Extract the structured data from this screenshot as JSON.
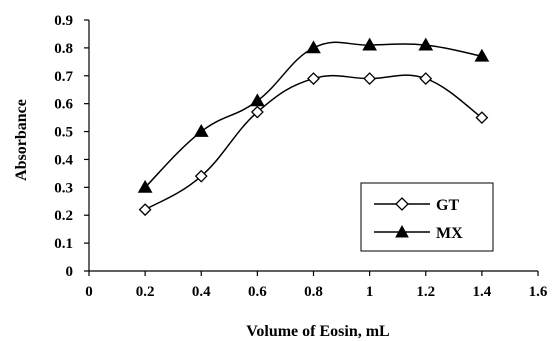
{
  "chart_data": {
    "type": "line",
    "title": "",
    "xlabel": "Volume of Eosin, mL",
    "ylabel": "Absorbance",
    "xlim": [
      0,
      1.6
    ],
    "ylim": [
      0,
      0.9
    ],
    "x_ticks": [
      0,
      0.2,
      0.4,
      0.6,
      0.8,
      1,
      1.2,
      1.4,
      1.6
    ],
    "y_ticks": [
      0,
      0.1,
      0.2,
      0.3,
      0.4,
      0.5,
      0.6,
      0.7,
      0.8,
      0.9
    ],
    "x_tick_labels": [
      "0",
      "0.2",
      "0.4",
      "0.6",
      "0.8",
      "1",
      "1.2",
      "1.4",
      "1.6"
    ],
    "y_tick_labels": [
      "0",
      "0.1",
      "0.2",
      "0.3",
      "0.4",
      "0.5",
      "0.6",
      "0.7",
      "0.8",
      "0.9"
    ],
    "grid": false,
    "smooth": true,
    "legend_position": "bottom-right",
    "series": [
      {
        "name": "GT",
        "marker": "diamond-open",
        "color": "#000000",
        "x": [
          0.2,
          0.4,
          0.6,
          0.8,
          1.0,
          1.2,
          1.4
        ],
        "y": [
          0.22,
          0.34,
          0.57,
          0.69,
          0.69,
          0.69,
          0.55
        ]
      },
      {
        "name": "MX",
        "marker": "triangle-filled",
        "color": "#000000",
        "x": [
          0.2,
          0.4,
          0.6,
          0.8,
          1.0,
          1.2,
          1.4
        ],
        "y": [
          0.3,
          0.5,
          0.61,
          0.8,
          0.81,
          0.81,
          0.77
        ]
      }
    ]
  }
}
